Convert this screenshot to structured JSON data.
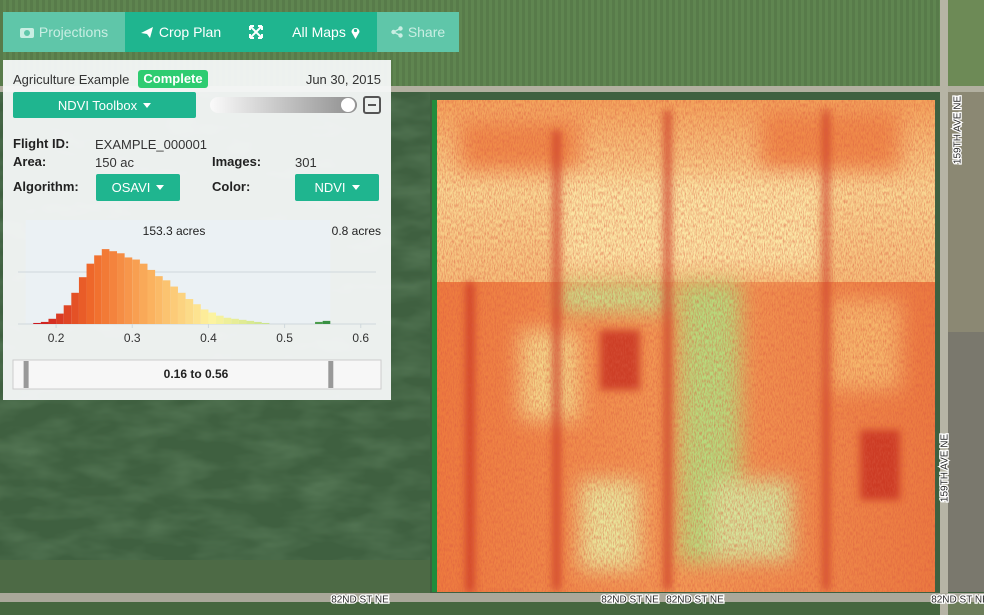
{
  "toolbar": {
    "buttons": [
      "Projections",
      "Crop Plan",
      "All Maps",
      "Share"
    ]
  },
  "panel": {
    "title": "Agriculture Example",
    "status": "Complete",
    "date": "Jun 30, 2015",
    "toolbox": "NDVI Toolbox",
    "fields": {
      "flight_id_label": "Flight ID:",
      "flight_id": "EXAMPLE_000001",
      "area_label": "Area:",
      "area": "150 ac",
      "images_label": "Images:",
      "images": "301",
      "algorithm_label": "Algorithm:",
      "algorithm": "OSAVI",
      "color_label": "Color:",
      "color": "NDVI"
    }
  },
  "histogram": {
    "type": "histogram",
    "bins": [
      0.17,
      0.18,
      0.19,
      0.2,
      0.21,
      0.22,
      0.23,
      0.24,
      0.25,
      0.26,
      0.27,
      0.28,
      0.29,
      0.3,
      0.31,
      0.32,
      0.33,
      0.34,
      0.35,
      0.36,
      0.37,
      0.38,
      0.39,
      0.4,
      0.41,
      0.42,
      0.43,
      0.44,
      0.45,
      0.46,
      0.47,
      0.48,
      0.49,
      0.5,
      0.51,
      0.52,
      0.53,
      0.54,
      0.55,
      0.56
    ],
    "counts": [
      1,
      2,
      5,
      10,
      18,
      30,
      45,
      58,
      66,
      72,
      70,
      68,
      64,
      62,
      58,
      52,
      46,
      42,
      36,
      30,
      24,
      19,
      14,
      11,
      8,
      6,
      5,
      4,
      3,
      2,
      1,
      0,
      0,
      0,
      0,
      0,
      0,
      2,
      3
    ],
    "xlim": [
      0.15,
      0.62
    ],
    "xticks": [
      0.2,
      0.3,
      0.4,
      0.5,
      0.6
    ],
    "ylim": [
      0,
      100
    ],
    "left_label": "153.3 acres",
    "right_label": "0.8 acres",
    "range": [
      0.16,
      0.56
    ],
    "range_label": "0.16 to 0.56",
    "colors": [
      "#c8141e",
      "#f06a2a",
      "#fbb360",
      "#fdf3a0",
      "#c5e38a",
      "#2e8b3e"
    ]
  },
  "map": {
    "road_labels": [
      "159TH AVE NE",
      "159TH AVE NE",
      "82ND ST NE",
      "82ND ST NE",
      "82ND ST NE",
      "82ND ST NE"
    ]
  }
}
